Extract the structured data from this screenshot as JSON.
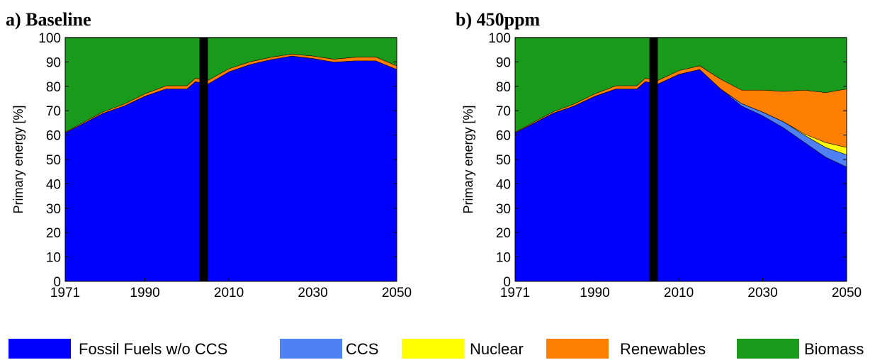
{
  "chart_data": [
    {
      "type": "area",
      "title": "a) Baseline",
      "ylabel": "Primary energy [%]",
      "xlabel": "",
      "xlim": [
        1971,
        2050
      ],
      "ylim": [
        0,
        100
      ],
      "x_ticks": [
        "1971",
        "1990",
        "2010",
        "2030",
        "2050"
      ],
      "x_tick_values": [
        1971,
        1990,
        2010,
        2030,
        2050
      ],
      "y_ticks": [
        "0",
        "10",
        "20",
        "30",
        "40",
        "50",
        "60",
        "70",
        "80",
        "90",
        "100"
      ],
      "y_tick_values": [
        0,
        10,
        20,
        30,
        40,
        50,
        60,
        70,
        80,
        90,
        100
      ],
      "stacked": true,
      "marker_band": [
        2003,
        2005
      ],
      "x": [
        1971,
        1980,
        1985,
        1990,
        1995,
        2000,
        2002,
        2005,
        2010,
        2015,
        2020,
        2025,
        2030,
        2035,
        2040,
        2045,
        2050
      ],
      "series": [
        {
          "name": "Fossil Fuels w/o CCS",
          "color": "#0000ff",
          "values": [
            61,
            69,
            72,
            76,
            79,
            79,
            82,
            81,
            86,
            89,
            91,
            92.5,
            91.5,
            90,
            90.5,
            90.5,
            87
          ]
        },
        {
          "name": "CCS",
          "color": "#4f81f5",
          "values": [
            0,
            0,
            0,
            0,
            0,
            0,
            0,
            0,
            0,
            0,
            0,
            0,
            0,
            0,
            0,
            0,
            0
          ]
        },
        {
          "name": "Nuclear",
          "color": "#ffff00",
          "values": [
            0,
            0,
            0,
            0,
            0,
            0,
            0,
            0,
            0,
            0,
            0,
            0,
            0,
            0,
            0,
            0,
            0
          ]
        },
        {
          "name": "Renewables",
          "color": "#ff8000",
          "values": [
            0.3,
            0.6,
            0.8,
            1,
            1.3,
            1.3,
            1.4,
            1.5,
            1.3,
            1.1,
            1,
            0.8,
            1,
            1.2,
            1.5,
            1.6,
            1.5
          ]
        },
        {
          "name": "Biomass",
          "color": "#1a9a1a",
          "values": [
            38.7,
            30.4,
            27.2,
            23,
            19.7,
            19.7,
            16.6,
            17.5,
            12.7,
            9.9,
            8,
            6.7,
            7.5,
            8.8,
            8,
            7.9,
            11.5
          ]
        }
      ]
    },
    {
      "type": "area",
      "title": "b) 450ppm",
      "ylabel": "Primary energy [%]",
      "xlabel": "",
      "xlim": [
        1971,
        2050
      ],
      "ylim": [
        0,
        100
      ],
      "x_ticks": [
        "1971",
        "1990",
        "2010",
        "2030",
        "2050"
      ],
      "x_tick_values": [
        1971,
        1990,
        2010,
        2030,
        2050
      ],
      "y_ticks": [
        "0",
        "10",
        "20",
        "30",
        "40",
        "50",
        "60",
        "70",
        "80",
        "90",
        "100"
      ],
      "y_tick_values": [
        0,
        10,
        20,
        30,
        40,
        50,
        60,
        70,
        80,
        90,
        100
      ],
      "stacked": true,
      "marker_band": [
        2003,
        2005
      ],
      "x": [
        1971,
        1980,
        1985,
        1990,
        1995,
        2000,
        2002,
        2005,
        2010,
        2015,
        2020,
        2025,
        2030,
        2035,
        2040,
        2045,
        2050
      ],
      "series": [
        {
          "name": "Fossil Fuels w/o CCS",
          "color": "#0000ff",
          "values": [
            61,
            69,
            72,
            76,
            79,
            79,
            82,
            81,
            85,
            87,
            79,
            72,
            68,
            63,
            57,
            51,
            47
          ]
        },
        {
          "name": "CCS",
          "color": "#4f81f5",
          "values": [
            0,
            0,
            0,
            0,
            0,
            0,
            0,
            0,
            0,
            0,
            0,
            1,
            1.5,
            2.5,
            3,
            4,
            5
          ]
        },
        {
          "name": "Nuclear",
          "color": "#ffff00",
          "values": [
            0,
            0,
            0,
            0,
            0,
            0,
            0,
            0,
            0,
            0,
            0,
            0,
            0,
            0,
            0.5,
            2,
            3
          ]
        },
        {
          "name": "Renewables",
          "color": "#ff8000",
          "values": [
            0.3,
            0.6,
            0.8,
            1,
            1.3,
            1.3,
            1.4,
            1.5,
            1.5,
            1.5,
            4,
            5.5,
            9,
            12.5,
            18,
            20.5,
            24
          ]
        },
        {
          "name": "Biomass",
          "color": "#1a9a1a",
          "values": [
            38.7,
            30.4,
            27.2,
            23,
            19.7,
            19.7,
            16.6,
            17.5,
            13.5,
            11.5,
            17,
            21.5,
            21.5,
            22,
            21.5,
            22.5,
            21
          ]
        }
      ]
    }
  ],
  "legend": {
    "items": [
      {
        "label": "Fossil Fuels w/o CCS",
        "color": "#0000ff"
      },
      {
        "label": "CCS",
        "color": "#4f81f5"
      },
      {
        "label": "Nuclear",
        "color": "#ffff00"
      },
      {
        "label": "Renewables",
        "color": "#ff8000"
      },
      {
        "label": "Biomass",
        "color": "#1a9a1a"
      }
    ]
  }
}
